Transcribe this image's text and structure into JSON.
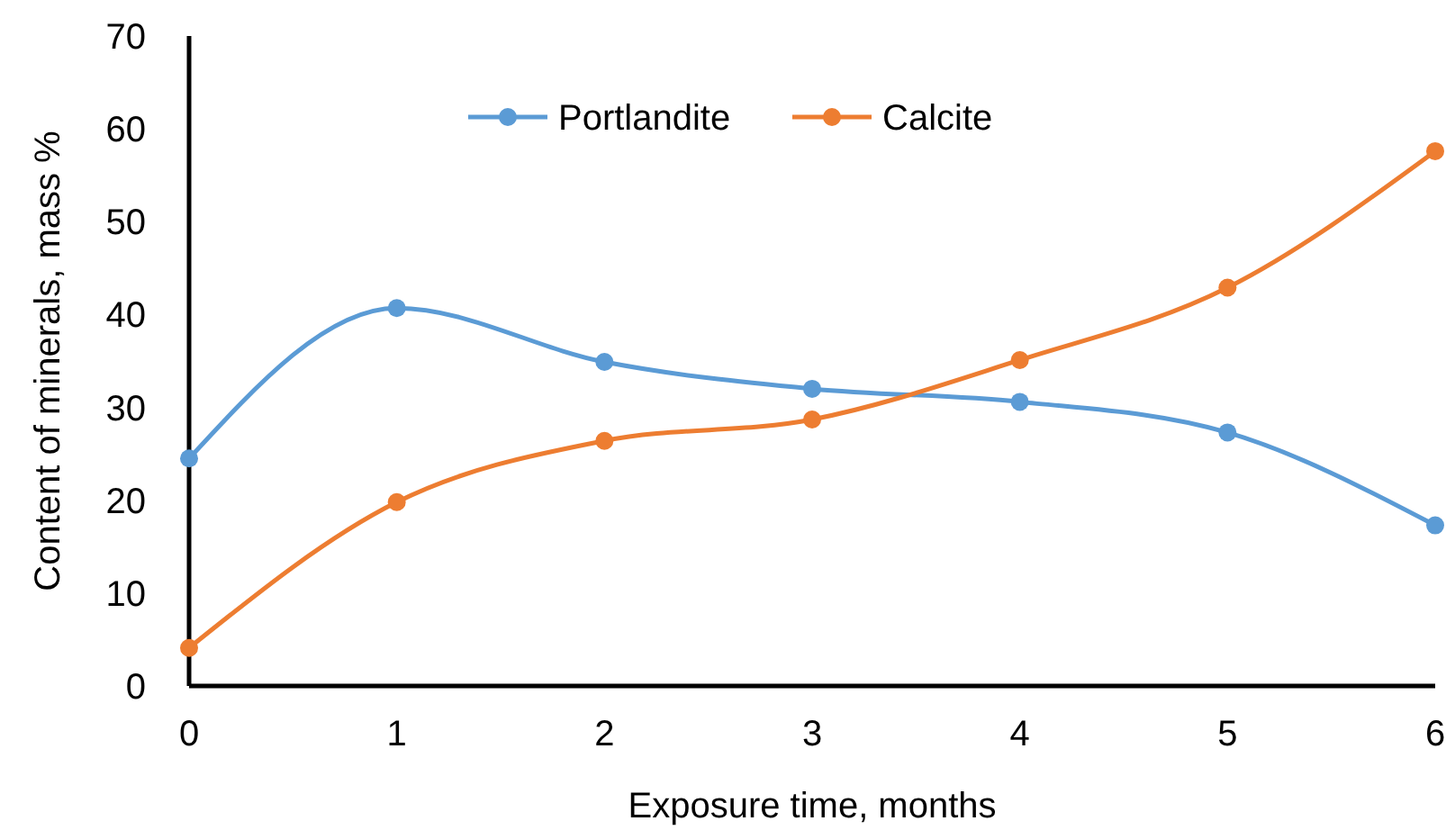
{
  "chart_data": {
    "type": "line",
    "xlabel": "Exposure time, months",
    "ylabel": "Content of minerals, mass %",
    "x": [
      0,
      1,
      2,
      3,
      4,
      5,
      6
    ],
    "xlim": [
      0,
      6
    ],
    "xticks": [
      0,
      1,
      2,
      3,
      4,
      5,
      6
    ],
    "ylim": [
      0,
      70
    ],
    "yticks": [
      0,
      10,
      20,
      30,
      40,
      50,
      60,
      70
    ],
    "series": [
      {
        "name": "Portlandite",
        "color": "#5b9bd5",
        "values": [
          24.5,
          40.7,
          34.9,
          32.0,
          30.6,
          27.3,
          17.3
        ]
      },
      {
        "name": "Calcite",
        "color": "#ed7d31",
        "values": [
          4.1,
          19.8,
          26.4,
          28.7,
          35.1,
          42.9,
          57.6
        ]
      }
    ],
    "marker": "circle",
    "legend": "top",
    "grid": false
  }
}
